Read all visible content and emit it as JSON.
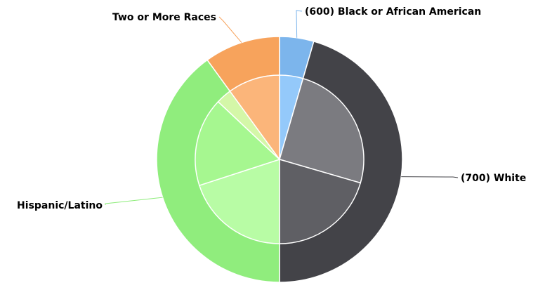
{
  "chart_data": {
    "type": "pie",
    "variant": "nested-donut",
    "title": "",
    "outer_ring": [
      {
        "label": "(600) Black or African American",
        "value": 4.5,
        "color": "#7cb5ec"
      },
      {
        "label": "(700) White",
        "value": 45.5,
        "color": "#434348"
      },
      {
        "label": "Hispanic/Latino",
        "value": 40.0,
        "color": "#90ed7d"
      },
      {
        "label": "Two or More Races",
        "value": 10.0,
        "color": "#f7a35c"
      }
    ],
    "inner_ring": [
      {
        "parent": "(600) Black or African American",
        "value": 4.5,
        "color": "#94c9fa"
      },
      {
        "parent": "(700) White",
        "value": 25.0,
        "color": "#7b7b80"
      },
      {
        "parent": "(700) White",
        "value": 20.5,
        "color": "#5f5f64"
      },
      {
        "parent": "Hispanic/Latino",
        "value": 20.0,
        "color": "#b8fca5"
      },
      {
        "parent": "Hispanic/Latino",
        "value": 17.0,
        "color": "#a6f790"
      },
      {
        "parent": "Hispanic/Latino",
        "value": 3.0,
        "color": "#d4f7a8"
      },
      {
        "parent": "Two or More Races",
        "value": 10.0,
        "color": "#fbb57a"
      }
    ],
    "legend": "none",
    "data_labels": "outside with connector lines"
  }
}
